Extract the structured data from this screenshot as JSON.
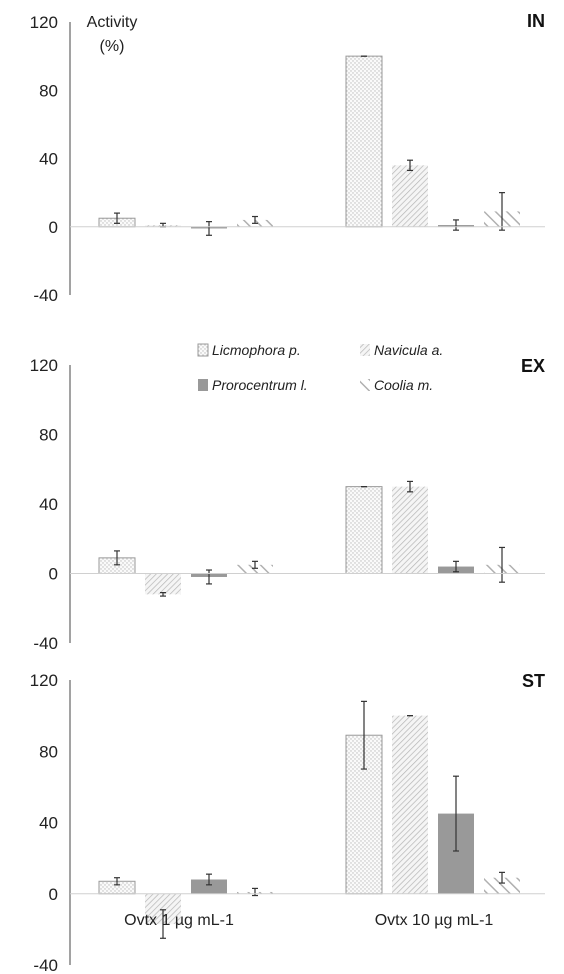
{
  "chart_data": [
    {
      "type": "bar",
      "panel": "IN",
      "ylabel": "Activity\n(%)",
      "ylim": [
        -40,
        120
      ],
      "yticks": [
        -40,
        0,
        40,
        80,
        120
      ],
      "categories": [
        "Ovtx 1 µg mL-1",
        "Ovtx 10 µg mL-1"
      ],
      "series": [
        {
          "name": "Licmophora p.",
          "values": [
            5,
            100
          ],
          "errors": [
            3,
            0
          ]
        },
        {
          "name": "Navicula a.",
          "values": [
            1,
            36
          ],
          "errors": [
            1,
            3
          ]
        },
        {
          "name": "Prorocentrum l.",
          "values": [
            -1,
            1
          ],
          "errors": [
            4,
            3
          ]
        },
        {
          "name": "Coolia m.",
          "values": [
            4,
            9
          ],
          "errors": [
            2,
            11
          ]
        }
      ]
    },
    {
      "type": "bar",
      "panel": "EX",
      "ylim": [
        -40,
        120
      ],
      "yticks": [
        -40,
        0,
        40,
        80,
        120
      ],
      "categories": [
        "Ovtx 1 µg mL-1",
        "Ovtx 10 µg mL-1"
      ],
      "series": [
        {
          "name": "Licmophora p.",
          "values": [
            9,
            50
          ],
          "errors": [
            4,
            0
          ]
        },
        {
          "name": "Navicula a.",
          "values": [
            -12,
            50
          ],
          "errors": [
            1,
            3
          ]
        },
        {
          "name": "Prorocentrum l.",
          "values": [
            -2,
            4
          ],
          "errors": [
            4,
            3
          ]
        },
        {
          "name": "Coolia m.",
          "values": [
            5,
            5
          ],
          "errors": [
            2,
            10
          ]
        }
      ],
      "legend_position": "top"
    },
    {
      "type": "bar",
      "panel": "ST",
      "ylim": [
        -40,
        120
      ],
      "yticks": [
        -40,
        0,
        40,
        80,
        120
      ],
      "categories": [
        "Ovtx 1 µg mL-1",
        "Ovtx 10 µg mL-1"
      ],
      "series": [
        {
          "name": "Licmophora p.",
          "values": [
            7,
            89
          ],
          "errors": [
            2,
            19
          ]
        },
        {
          "name": "Navicula a.",
          "values": [
            -17,
            100
          ],
          "errors": [
            8,
            0
          ]
        },
        {
          "name": "Prorocentrum l.",
          "values": [
            8,
            45
          ],
          "errors": [
            3,
            21
          ]
        },
        {
          "name": "Coolia m.",
          "values": [
            1,
            9
          ],
          "errors": [
            2,
            3
          ]
        }
      ]
    }
  ],
  "legend": {
    "items": [
      "Licmophora p.",
      "Navicula a.",
      "Prorocentrum l.",
      "Coolia m."
    ]
  },
  "colors": {
    "prorocentrum": "#999999",
    "pattern_stroke": "#bdbdbd",
    "axis": "#444444"
  }
}
